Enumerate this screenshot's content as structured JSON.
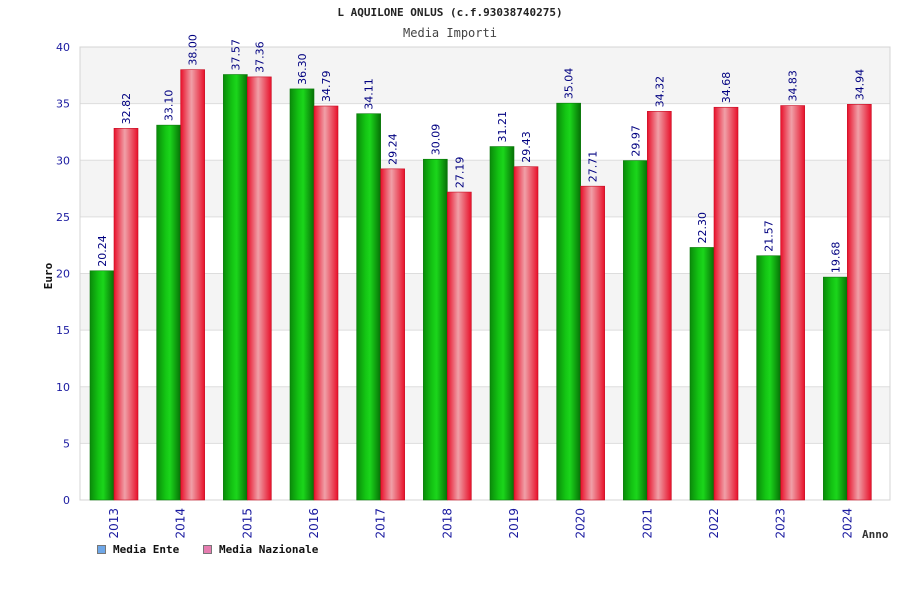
{
  "title": "L AQUILONE ONLUS (c.f.93038740275)",
  "subtitle": "Media Importi",
  "colors": {
    "ente": "#18b918",
    "nazionale": "#e8283a",
    "ente_legend": "#6ea7e8",
    "nazionale_legend": "#e67db0",
    "axis_text": "#1a1aa0",
    "value_label": "#000080"
  },
  "chart_data": {
    "type": "bar",
    "title": "L AQUILONE ONLUS (c.f.93038740275)",
    "subtitle": "Media Importi",
    "xlabel": "Anno",
    "ylabel": "Euro",
    "ylim": [
      0,
      40
    ],
    "yticks": [
      "0",
      "5",
      "10",
      "15",
      "20",
      "25",
      "30",
      "35",
      "40"
    ],
    "grid": true,
    "legend_position": "bottom-left",
    "categories": [
      "2013",
      "2014",
      "2015",
      "2016",
      "2017",
      "2018",
      "2019",
      "2020",
      "2021",
      "2022",
      "2023",
      "2024"
    ],
    "series": [
      {
        "name": "Media Ente",
        "values": [
          20.24,
          33.1,
          37.57,
          36.3,
          34.11,
          30.09,
          31.21,
          35.04,
          29.97,
          22.3,
          21.57,
          19.68
        ],
        "labels": [
          "20.24",
          "33.10",
          "37.57",
          "36.30",
          "34.11",
          "30.09",
          "31.21",
          "35.04",
          "29.97",
          "22.30",
          "21.57",
          "19.68"
        ]
      },
      {
        "name": "Media Nazionale",
        "values": [
          32.82,
          38.0,
          37.36,
          34.79,
          29.24,
          27.19,
          29.43,
          27.71,
          34.32,
          34.68,
          34.83,
          34.94
        ],
        "labels": [
          "32.82",
          "38.00",
          "37.36",
          "34.79",
          "29.24",
          "27.19",
          "29.43",
          "27.71",
          "34.32",
          "34.68",
          "34.83",
          "34.94"
        ]
      }
    ]
  }
}
